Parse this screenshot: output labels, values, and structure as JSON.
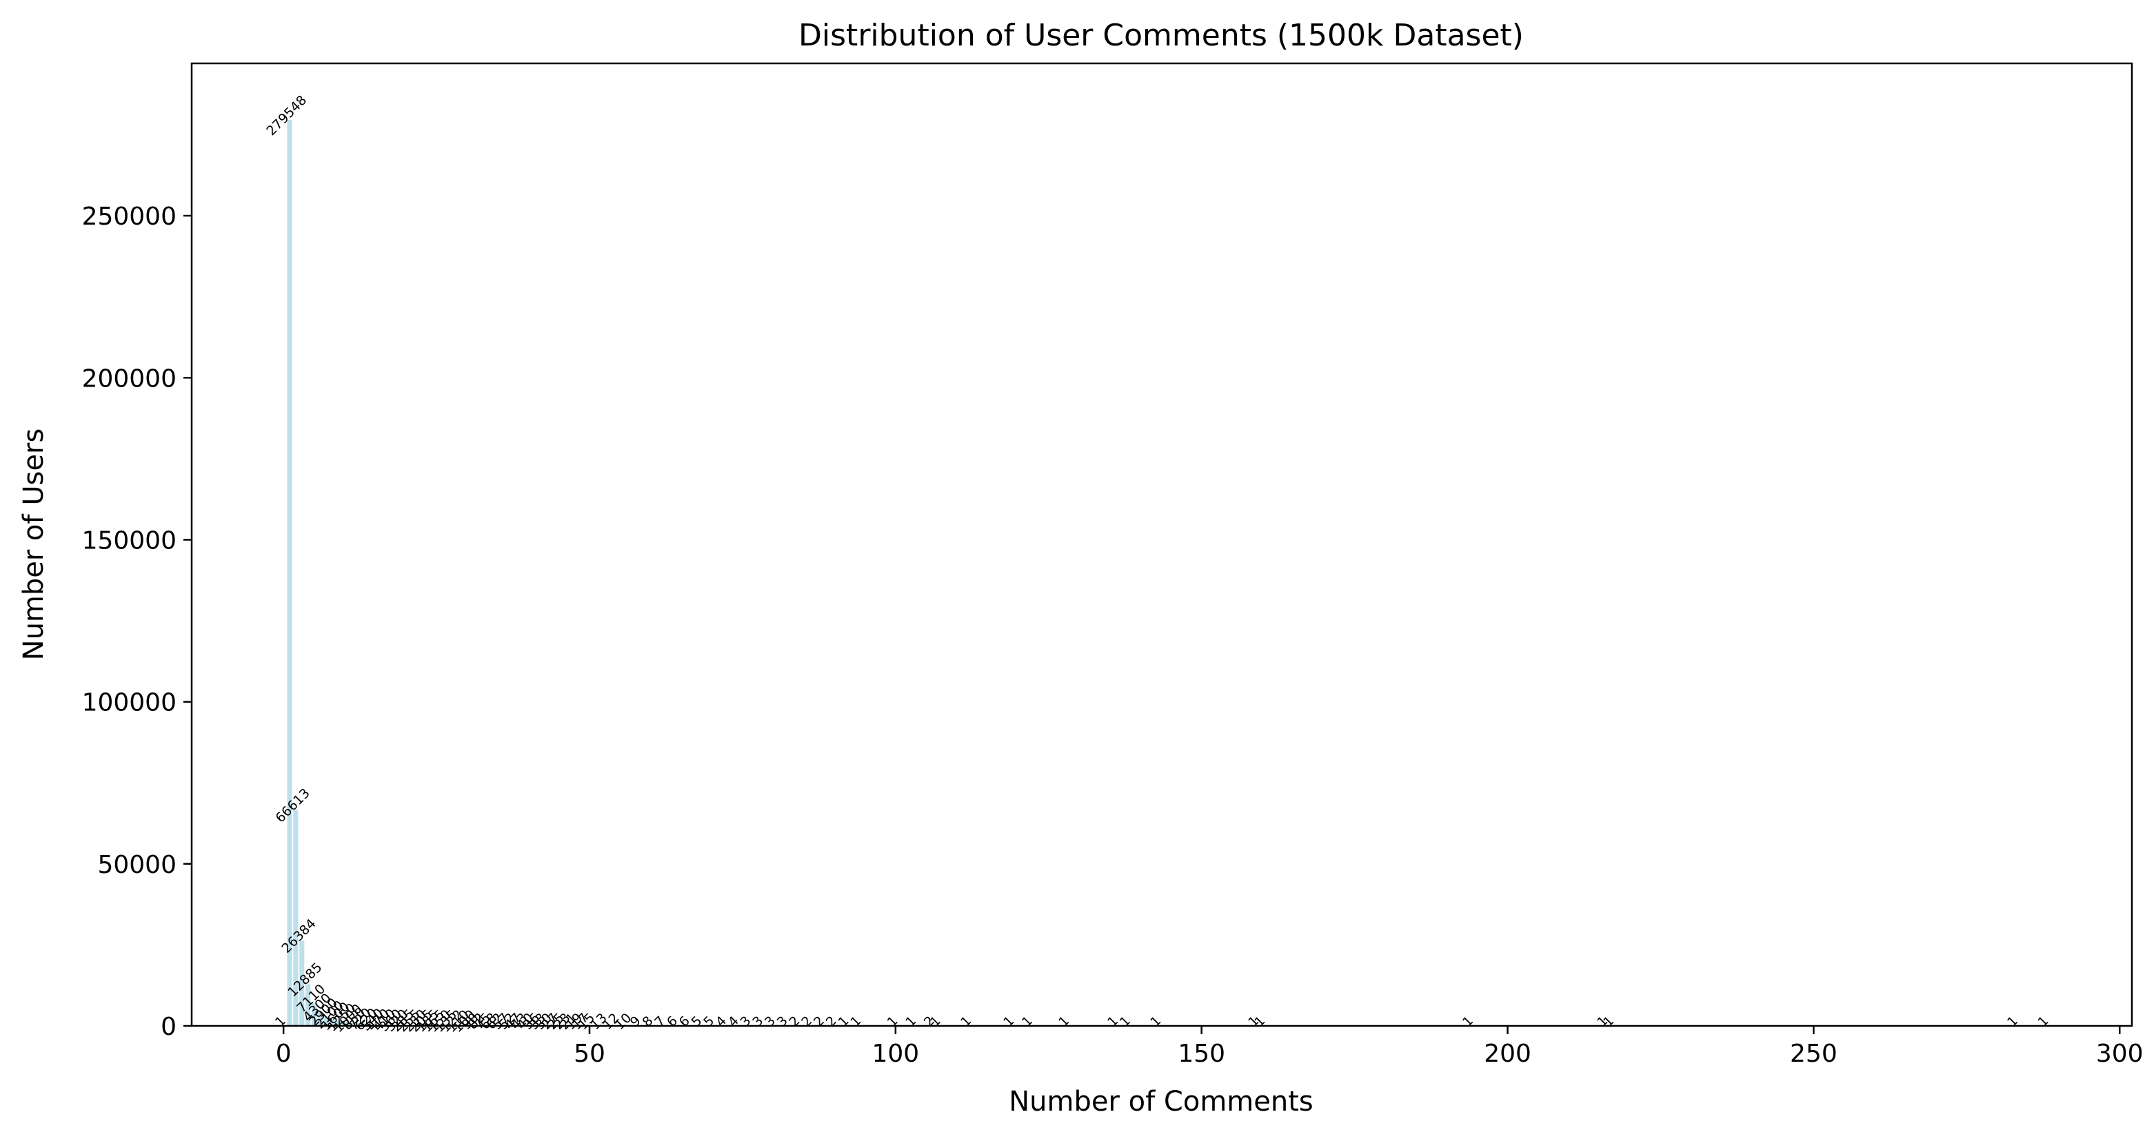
{
  "chart_data": {
    "type": "bar",
    "title": "Distribution of User Comments (1500k Dataset)",
    "xlabel": "Number of Comments",
    "ylabel": "Number of Users",
    "xlim": [
      -15,
      302
    ],
    "ylim": [
      0,
      297000
    ],
    "x_ticks": [
      0,
      50,
      100,
      150,
      200,
      250,
      300
    ],
    "y_ticks": [
      0,
      50000,
      100000,
      150000,
      200000,
      250000
    ],
    "grid": false,
    "legend": "none",
    "bar_color": "#add8e6",
    "bar_alpha": 0.8,
    "x": [
      0,
      1,
      2,
      3,
      4,
      5,
      6,
      7,
      8,
      9,
      10,
      11,
      12,
      13,
      14,
      15,
      16,
      17,
      18,
      19,
      20,
      21,
      22,
      23,
      24,
      25,
      26,
      27,
      28,
      29,
      30,
      31,
      32,
      33,
      34,
      35,
      36,
      37,
      38,
      39,
      40,
      41,
      42,
      43,
      44,
      45,
      46,
      47,
      48,
      49,
      50,
      52,
      54,
      56,
      58,
      60,
      62,
      64,
      66,
      68,
      70,
      72,
      74,
      76,
      78,
      80,
      82,
      84,
      86,
      88,
      90,
      92,
      94,
      100,
      103,
      106,
      107,
      112,
      119,
      122,
      128,
      136,
      138,
      143,
      159,
      160,
      194,
      216,
      217,
      283,
      288
    ],
    "values": [
      1,
      279548,
      66613,
      26384,
      12885,
      7110,
      4300,
      2900,
      2100,
      1600,
      1250,
      1000,
      850,
      720,
      620,
      540,
      470,
      410,
      360,
      320,
      285,
      255,
      230,
      205,
      185,
      165,
      150,
      135,
      122,
      110,
      100,
      90,
      82,
      75,
      68,
      62,
      57,
      52,
      47,
      43,
      40,
      36,
      33,
      30,
      27,
      25,
      23,
      21,
      19,
      17,
      15,
      13,
      12,
      10,
      9,
      8,
      7,
      6,
      6,
      5,
      5,
      4,
      4,
      3,
      3,
      3,
      3,
      2,
      2,
      2,
      2,
      1,
      1,
      1,
      1,
      2,
      1,
      1,
      1,
      1,
      1,
      1,
      1,
      1,
      1,
      1,
      1,
      1,
      1,
      1,
      1
    ]
  }
}
